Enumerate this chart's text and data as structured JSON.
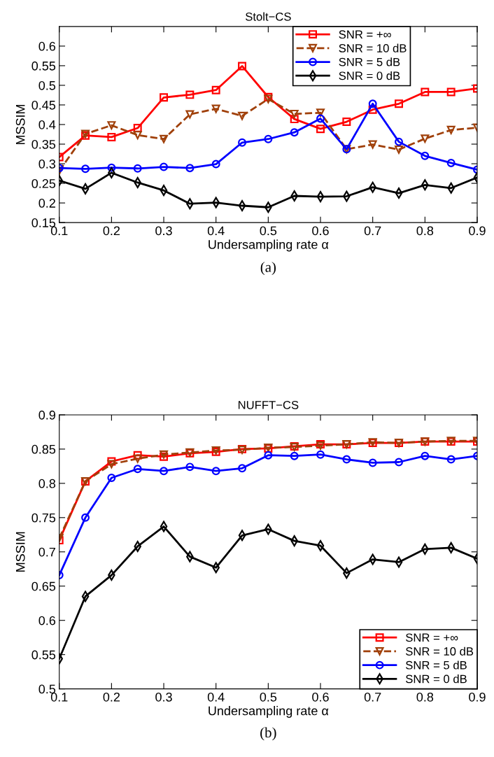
{
  "chart_data": [
    {
      "type": "line",
      "title": "Stolt−CS",
      "xlabel": "Undersampling rate α",
      "ylabel": "MSSIM",
      "annotations": [
        "(a)"
      ],
      "x": [
        0.1,
        0.15,
        0.2,
        0.25,
        0.3,
        0.35,
        0.4,
        0.45,
        0.5,
        0.55,
        0.6,
        0.65,
        0.7,
        0.75,
        0.8,
        0.85,
        0.9
      ],
      "xlim": [
        0.1,
        0.9
      ],
      "xticks": [
        0.1,
        0.2,
        0.3,
        0.4,
        0.5,
        0.6,
        0.7,
        0.8,
        0.9
      ],
      "ylim": [
        0.15,
        0.65
      ],
      "yticks": [
        0.15,
        0.2,
        0.25,
        0.3,
        0.35,
        0.4,
        0.45,
        0.5,
        0.55,
        0.6
      ],
      "grid": false,
      "legend": "top right",
      "series": [
        {
          "name": "SNR = +∞",
          "color": "#ff0000",
          "marker": "square",
          "line_style": "solid",
          "values": [
            0.317,
            0.372,
            0.368,
            0.391,
            0.469,
            0.476,
            0.488,
            0.549,
            0.47,
            0.414,
            0.389,
            0.407,
            0.438,
            0.453,
            0.483,
            0.483,
            0.492
          ]
        },
        {
          "name": "SNR = 10 dB",
          "color": "#a0400a",
          "marker": "triangle",
          "line_style": "dashed",
          "values": [
            0.282,
            0.376,
            0.398,
            0.373,
            0.363,
            0.426,
            0.44,
            0.422,
            0.465,
            0.427,
            0.43,
            0.337,
            0.349,
            0.336,
            0.364,
            0.386,
            0.392
          ]
        },
        {
          "name": "SNR = 5 dB",
          "color": "#0000ff",
          "marker": "circle",
          "line_style": "solid",
          "values": [
            0.289,
            0.287,
            0.29,
            0.288,
            0.292,
            0.289,
            0.299,
            0.354,
            0.363,
            0.38,
            0.415,
            0.337,
            0.453,
            0.356,
            0.32,
            0.302,
            0.285
          ]
        },
        {
          "name": "SNR = 0 dB",
          "color": "#000000",
          "marker": "diamond",
          "line_style": "solid",
          "values": [
            0.257,
            0.236,
            0.277,
            0.252,
            0.232,
            0.198,
            0.201,
            0.193,
            0.189,
            0.218,
            0.216,
            0.217,
            0.24,
            0.225,
            0.246,
            0.238,
            0.265
          ]
        }
      ]
    },
    {
      "type": "line",
      "title": "NUFFT−CS",
      "xlabel": "Undersampling rate α",
      "ylabel": "MSSIM",
      "annotations": [
        "(b)"
      ],
      "x": [
        0.1,
        0.15,
        0.2,
        0.25,
        0.3,
        0.35,
        0.4,
        0.45,
        0.5,
        0.55,
        0.6,
        0.65,
        0.7,
        0.75,
        0.8,
        0.85,
        0.9
      ],
      "xlim": [
        0.1,
        0.9
      ],
      "xticks": [
        0.1,
        0.2,
        0.3,
        0.4,
        0.5,
        0.6,
        0.7,
        0.8,
        0.9
      ],
      "ylim": [
        0.5,
        0.9
      ],
      "yticks": [
        0.5,
        0.55,
        0.6,
        0.65,
        0.7,
        0.75,
        0.8,
        0.85,
        0.9
      ],
      "grid": false,
      "legend": "bottom right",
      "series": [
        {
          "name": "SNR = +∞",
          "color": "#ff0000",
          "marker": "square",
          "line_style": "solid",
          "values": [
            0.717,
            0.803,
            0.832,
            0.841,
            0.839,
            0.844,
            0.846,
            0.85,
            0.851,
            0.854,
            0.857,
            0.857,
            0.859,
            0.859,
            0.861,
            0.861,
            0.861
          ]
        },
        {
          "name": "SNR = 10 dB",
          "color": "#a0400a",
          "marker": "triangle",
          "line_style": "dashed",
          "values": [
            0.72,
            0.803,
            0.828,
            0.836,
            0.842,
            0.845,
            0.848,
            0.849,
            0.852,
            0.853,
            0.855,
            0.857,
            0.86,
            0.859,
            0.861,
            0.862,
            0.862
          ]
        },
        {
          "name": "SNR = 5 dB",
          "color": "#0000ff",
          "marker": "circle",
          "line_style": "solid",
          "values": [
            0.666,
            0.75,
            0.808,
            0.821,
            0.818,
            0.824,
            0.818,
            0.822,
            0.841,
            0.84,
            0.842,
            0.835,
            0.83,
            0.831,
            0.84,
            0.835,
            0.84
          ]
        },
        {
          "name": "SNR = 0 dB",
          "color": "#000000",
          "marker": "diamond",
          "line_style": "solid",
          "values": [
            0.544,
            0.635,
            0.666,
            0.708,
            0.737,
            0.693,
            0.677,
            0.724,
            0.733,
            0.716,
            0.709,
            0.669,
            0.689,
            0.685,
            0.704,
            0.706,
            0.69
          ]
        }
      ]
    }
  ]
}
